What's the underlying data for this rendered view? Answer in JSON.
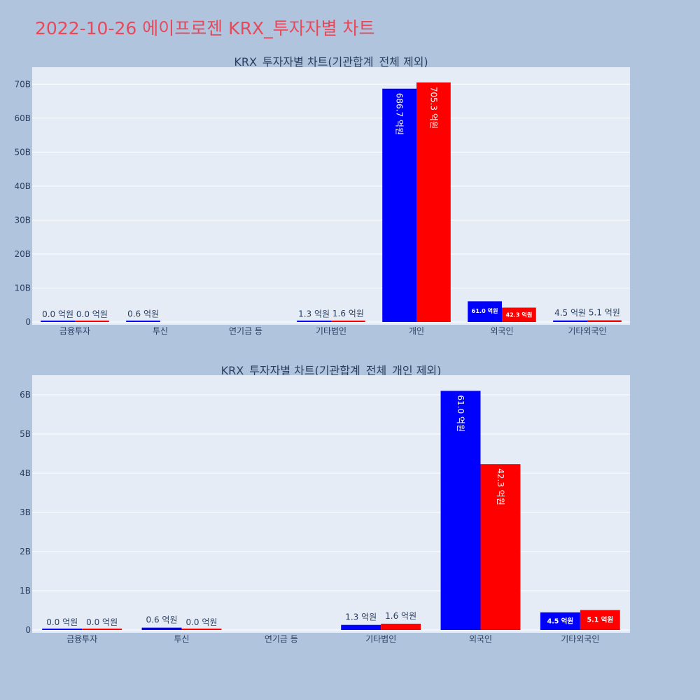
{
  "page_title": "2022-10-26 에이프로젠 KRX_투자자별 차트",
  "colors": {
    "background": "#b0c4de",
    "plot_bg": "#e5ecf6",
    "title": "#e8495a",
    "series_a": "#0000ff",
    "series_b": "#ff0000"
  },
  "chart_data": [
    {
      "type": "bar",
      "title": "KRX_투자자별 차트(기관합계_전체 제외)",
      "categories": [
        "금융투자",
        "투신",
        "연기금 등",
        "기타법인",
        "개인",
        "외국인",
        "기타외국인"
      ],
      "series": [
        {
          "color": "#0000ff",
          "values": [
            0,
            60000000,
            null,
            130000000,
            68670000000,
            6100000000,
            450000000
          ],
          "labels": [
            "0.0 억원",
            "0.6 억원",
            "",
            "1.3 억원",
            "686.7 억원",
            "61.0 억원",
            "4.5 억원"
          ]
        },
        {
          "color": "#ff0000",
          "values": [
            0,
            null,
            null,
            160000000,
            70530000000,
            4230000000,
            510000000
          ],
          "labels": [
            "0.0 억원",
            "",
            "",
            "1.6 억원",
            "705.3 억원",
            "42.3 억원",
            "5.1 억원"
          ]
        }
      ],
      "yticks": [
        "0",
        "10B",
        "20B",
        "30B",
        "40B",
        "50B",
        "60B",
        "70B"
      ],
      "ylim": [
        0,
        75000000000
      ],
      "grid": true
    },
    {
      "type": "bar",
      "title": "KRX_투자자별 차트(기관합계_전체_개인 제외)",
      "categories": [
        "금융투자",
        "투신",
        "연기금 등",
        "기타법인",
        "외국인",
        "기타외국인"
      ],
      "series": [
        {
          "color": "#0000ff",
          "values": [
            0,
            60000000,
            null,
            130000000,
            6100000000,
            450000000
          ],
          "labels": [
            "0.0 억원",
            "0.6 억원",
            "",
            "1.3 억원",
            "61.0 억원",
            "4.5 억원"
          ]
        },
        {
          "color": "#ff0000",
          "values": [
            0,
            0,
            null,
            160000000,
            4230000000,
            510000000
          ],
          "labels": [
            "0.0 억원",
            "0.0 억원",
            "",
            "1.6 억원",
            "42.3 억원",
            "5.1 억원"
          ]
        }
      ],
      "yticks": [
        "0",
        "1B",
        "2B",
        "3B",
        "4B",
        "5B",
        "6B"
      ],
      "ylim": [
        0,
        6500000000
      ],
      "grid": true
    }
  ]
}
